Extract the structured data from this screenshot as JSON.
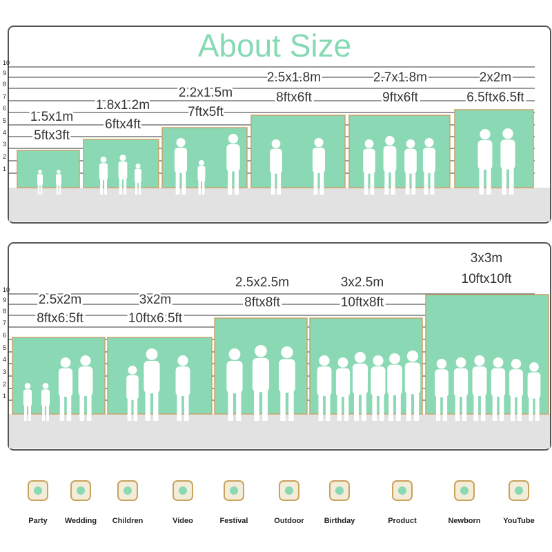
{
  "title": "About Size",
  "scale": [
    "1",
    "2",
    "3",
    "4",
    "5",
    "6",
    "7",
    "8",
    "9",
    "10"
  ],
  "panels": [
    {
      "sizes": [
        {
          "metric": "1.5x1m",
          "imperial": "5ftx3ft"
        },
        {
          "metric": "1.8x1.2m",
          "imperial": "6ftx4ft"
        },
        {
          "metric": "2.2x1.5m",
          "imperial": "7ftx5ft"
        },
        {
          "metric": "2.5x1.8m",
          "imperial": "8ftx6ft"
        },
        {
          "metric": "2.7x1.8m",
          "imperial": "9ftx6ft"
        },
        {
          "metric": "2x2m",
          "imperial": "6.5ftx6.5ft"
        }
      ]
    },
    {
      "sizes": [
        {
          "metric": "2.5x2m",
          "imperial": "8ftx6.5ft"
        },
        {
          "metric": "3x2m",
          "imperial": "10ftx6.5ft"
        },
        {
          "metric": "2.5x2.5m",
          "imperial": "8ftx8ft"
        },
        {
          "metric": "3x2.5m",
          "imperial": "10ftx8ft"
        },
        {
          "metric": "3x3m",
          "imperial": "10ftx10ft"
        }
      ]
    }
  ],
  "uses": [
    "Party",
    "Wedding",
    "Children",
    "Video",
    "Festival",
    "Outdoor",
    "Birthday",
    "Product",
    "Newborn",
    "YouTube"
  ]
}
